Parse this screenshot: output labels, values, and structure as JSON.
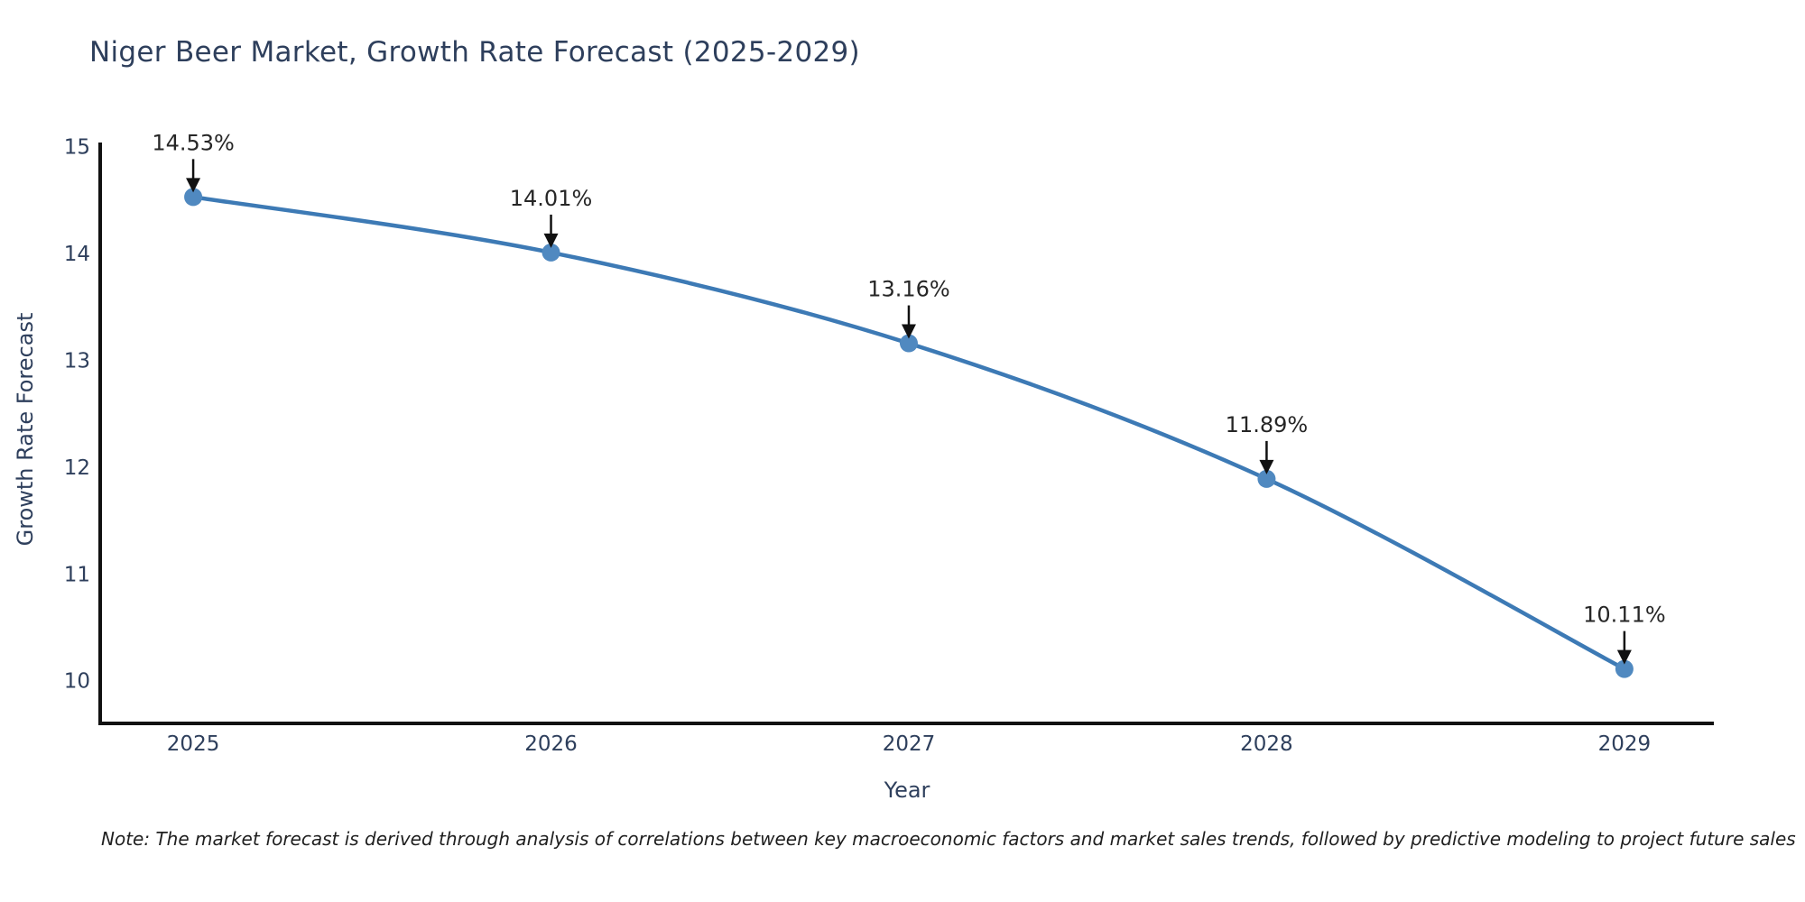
{
  "note": "Note: The market forecast is derived through analysis of correlations between key macroeconomic factors and market sales trends, followed by predictive modeling to project future sales",
  "chart_data": {
    "type": "line",
    "title": "Niger Beer Market, Growth Rate Forecast (2025-2029)",
    "xlabel": "Year",
    "ylabel": "Growth Rate Forecast",
    "x": [
      2025,
      2026,
      2027,
      2028,
      2029
    ],
    "values": [
      14.53,
      14.01,
      13.16,
      11.89,
      10.11
    ],
    "point_labels": [
      "14.53%",
      "14.01%",
      "13.16%",
      "11.89%",
      "10.11%"
    ],
    "yticks": [
      10,
      11,
      12,
      13,
      14,
      15
    ],
    "xticks": [
      2025,
      2026,
      2027,
      2028,
      2029
    ],
    "xlim": [
      2024.74,
      2029.25
    ],
    "ylim": [
      9.6,
      15.04
    ],
    "grid": false,
    "legend": null,
    "line_color": "#3d7ab5",
    "marker_color": "#5089c0",
    "axis_color": "#111111",
    "axis_text_color": "#2e3f5c",
    "annotation_color": "#262626",
    "arrow_color": "#111111",
    "background_color": "#ffffff"
  }
}
